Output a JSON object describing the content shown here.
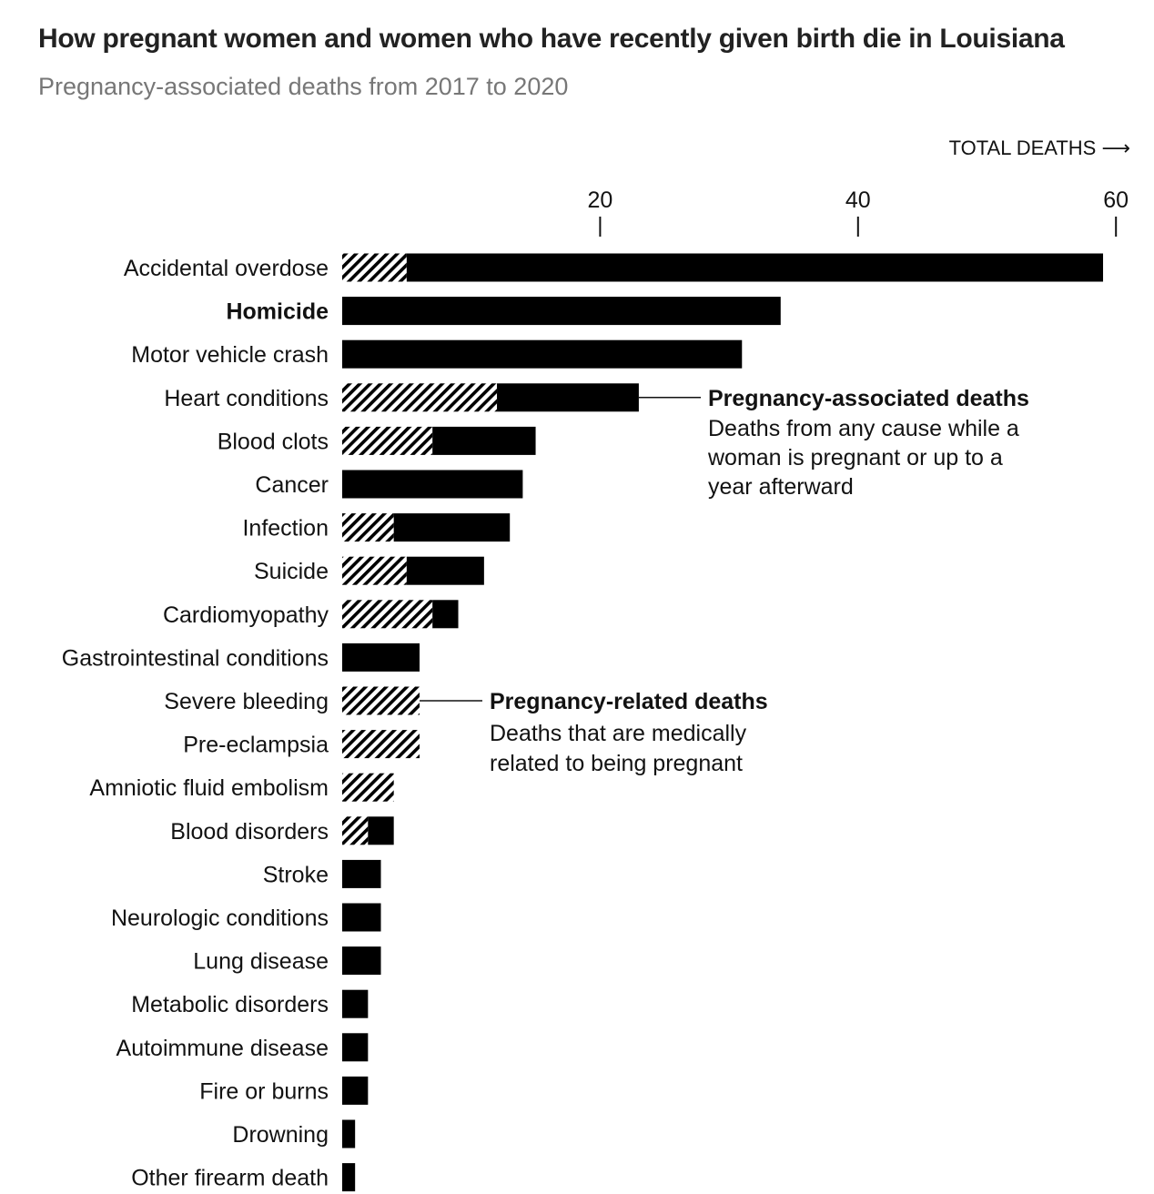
{
  "title": "How pregnant women and women who have recently given birth die in Louisiana",
  "subtitle": "Pregnancy-associated deaths from 2017 to 2020",
  "colors": {
    "bar": "#000000",
    "hatch": "#000000",
    "text": "#121212",
    "subtitle": "#777777"
  },
  "chart_data": {
    "type": "bar",
    "orientation": "horizontal",
    "axis_title": "TOTAL DEATHS ⟶",
    "xlim": [
      0,
      60
    ],
    "ticks": [
      20,
      40,
      60
    ],
    "tick_labels": [
      "20",
      "40",
      "60"
    ],
    "grid": false,
    "categories": [
      "Accidental overdose",
      "Homicide",
      "Motor vehicle crash",
      "Heart conditions",
      "Blood clots",
      "Cancer",
      "Infection",
      "Suicide",
      "Cardiomyopathy",
      "Gastrointestinal conditions",
      "Severe bleeding",
      "Pre-eclampsia",
      "Amniotic fluid embolism",
      "Blood disorders",
      "Stroke",
      "Neurologic conditions",
      "Lung disease",
      "Metabolic disorders",
      "Autoimmune disease",
      "Fire or burns",
      "Drowning",
      "Other firearm death"
    ],
    "highlighted_category": "Homicide",
    "series": [
      {
        "name": "Pregnancy-related deaths",
        "pattern": "hatched",
        "values": [
          5,
          0,
          0,
          12,
          7,
          0,
          4,
          5,
          7,
          0,
          6,
          6,
          4,
          2,
          0,
          0,
          0,
          0,
          0,
          0,
          0,
          0
        ]
      },
      {
        "name": "Pregnancy-associated deaths",
        "pattern": "solid",
        "values": [
          54,
          34,
          31,
          11,
          8,
          14,
          9,
          6,
          2,
          6,
          0,
          0,
          0,
          2,
          3,
          3,
          3,
          2,
          2,
          2,
          1,
          1
        ]
      }
    ],
    "stacked": true,
    "annotations": [
      {
        "category": "Heart conditions",
        "title": "Pregnancy-associated deaths",
        "lines": [
          "Deaths from any cause while a",
          "woman is pregnant or up to a",
          "year afterward"
        ]
      },
      {
        "category": "Severe bleeding",
        "title": "Pregnancy-related deaths",
        "lines": [
          "Deaths that are medically",
          "related to being pregnant"
        ]
      }
    ]
  }
}
